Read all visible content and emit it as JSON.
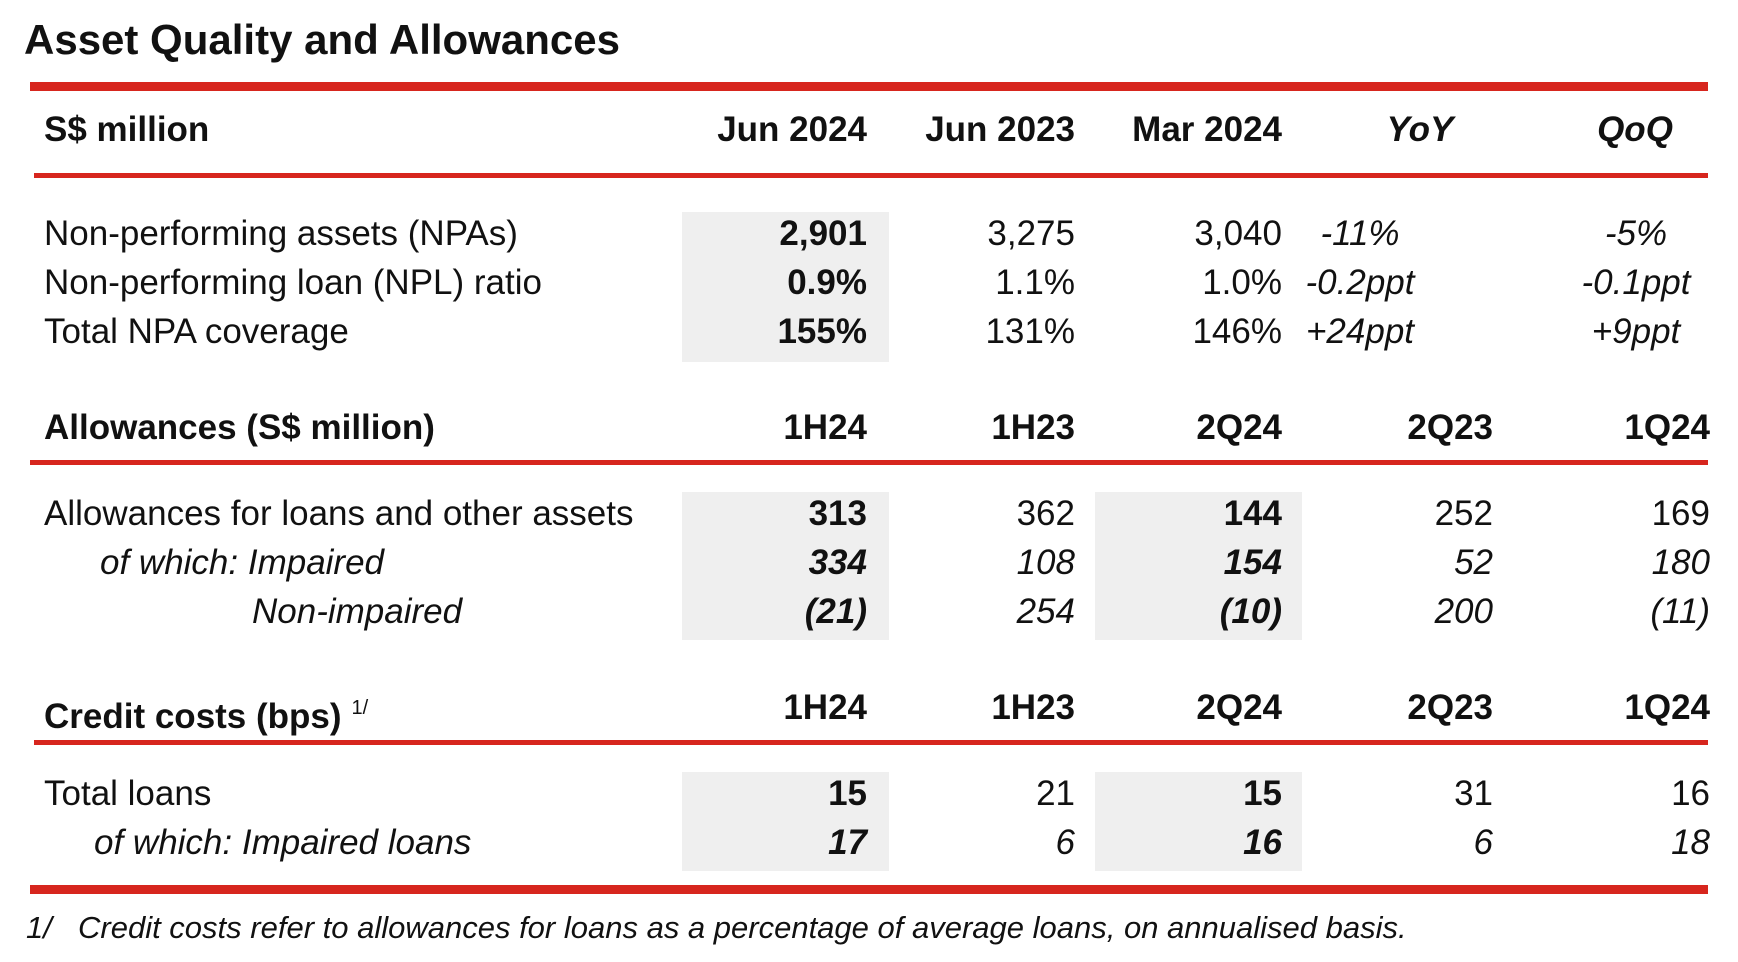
{
  "title": "Asset Quality and Allowances",
  "accent_color": "#d7261e",
  "shade_color": "#efefef",
  "section1": {
    "header": [
      "S$ million",
      "Jun 2024",
      "Jun 2023",
      "Mar 2024",
      "YoY",
      "QoQ"
    ],
    "rows": [
      {
        "label": "Non-performing assets (NPAs)",
        "values": [
          "2,901",
          "3,275",
          "3,040",
          "-11%",
          "-5%"
        ]
      },
      {
        "label": "Non-performing loan (NPL) ratio",
        "values": [
          "0.9%",
          "1.1%",
          "1.0%",
          "-0.2ppt",
          "-0.1ppt"
        ]
      },
      {
        "label": "Total NPA coverage",
        "values": [
          "155%",
          "131%",
          "146%",
          "+24ppt",
          "+9ppt"
        ]
      }
    ]
  },
  "section2": {
    "header": [
      "Allowances (S$ million)",
      "1H24",
      "1H23",
      "2Q24",
      "2Q23",
      "1Q24"
    ],
    "rows": [
      {
        "label": "Allowances for loans and other assets",
        "values": [
          "313",
          "362",
          "144",
          "252",
          "169"
        ]
      },
      {
        "label": "of which: Impaired",
        "values": [
          "334",
          "108",
          "154",
          "52",
          "180"
        ]
      },
      {
        "label": "Non-impaired",
        "values": [
          "(21)",
          "254",
          "(10)",
          "200",
          "(11)"
        ]
      }
    ]
  },
  "section3": {
    "header": [
      "Credit costs (bps)",
      "1H24",
      "1H23",
      "2Q24",
      "2Q23",
      "1Q24"
    ],
    "header_sup": "1/",
    "rows": [
      {
        "label": "Total loans",
        "values": [
          "15",
          "21",
          "15",
          "31",
          "16"
        ]
      },
      {
        "label": "of which: Impaired loans",
        "values": [
          "17",
          "6",
          "16",
          "6",
          "18"
        ]
      }
    ]
  },
  "footnote": {
    "marker": "1/",
    "text": "Credit costs refer to allowances for loans as a percentage of average loans, on annualised basis."
  }
}
